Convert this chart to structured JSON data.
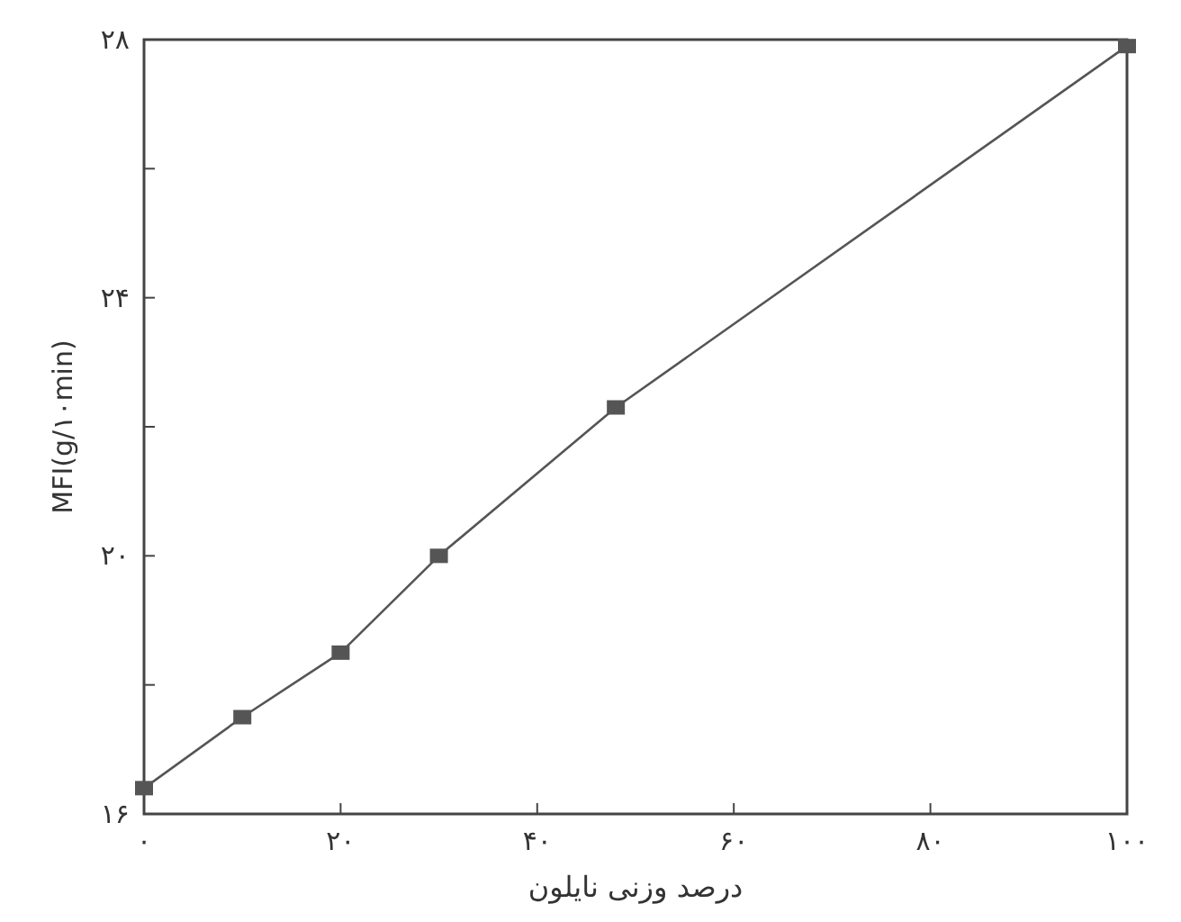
{
  "chart_data": {
    "type": "line",
    "xlabel": "درصد وزنی نایلون",
    "ylabel": "MFI(g/۱۰min)",
    "x": [
      0,
      10,
      20,
      30,
      48,
      100
    ],
    "series": [
      {
        "color": "#555555",
        "values": [
          16.4,
          17.5,
          18.5,
          20.0,
          22.3,
          27.9
        ]
      }
    ],
    "xlim": [
      0,
      100
    ],
    "ylim": [
      16,
      28
    ],
    "xticks": [
      {
        "value": 0,
        "label": "۰"
      },
      {
        "value": 20,
        "label": "۲۰"
      },
      {
        "value": 40,
        "label": "۴۰"
      },
      {
        "value": 60,
        "label": "۶۰"
      },
      {
        "value": 80,
        "label": "۸۰"
      },
      {
        "value": 100,
        "label": "۱۰۰"
      }
    ],
    "yticks": [
      {
        "value": 16,
        "label": "۱۶"
      },
      {
        "value": 18,
        "label": null
      },
      {
        "value": 20,
        "label": "۲۰"
      },
      {
        "value": 22,
        "label": null
      },
      {
        "value": 24,
        "label": "۲۴"
      },
      {
        "value": 26,
        "label": null
      },
      {
        "value": 28,
        "label": "۲۸"
      }
    ],
    "marker": "square",
    "line_style": "solid",
    "grid": false
  }
}
